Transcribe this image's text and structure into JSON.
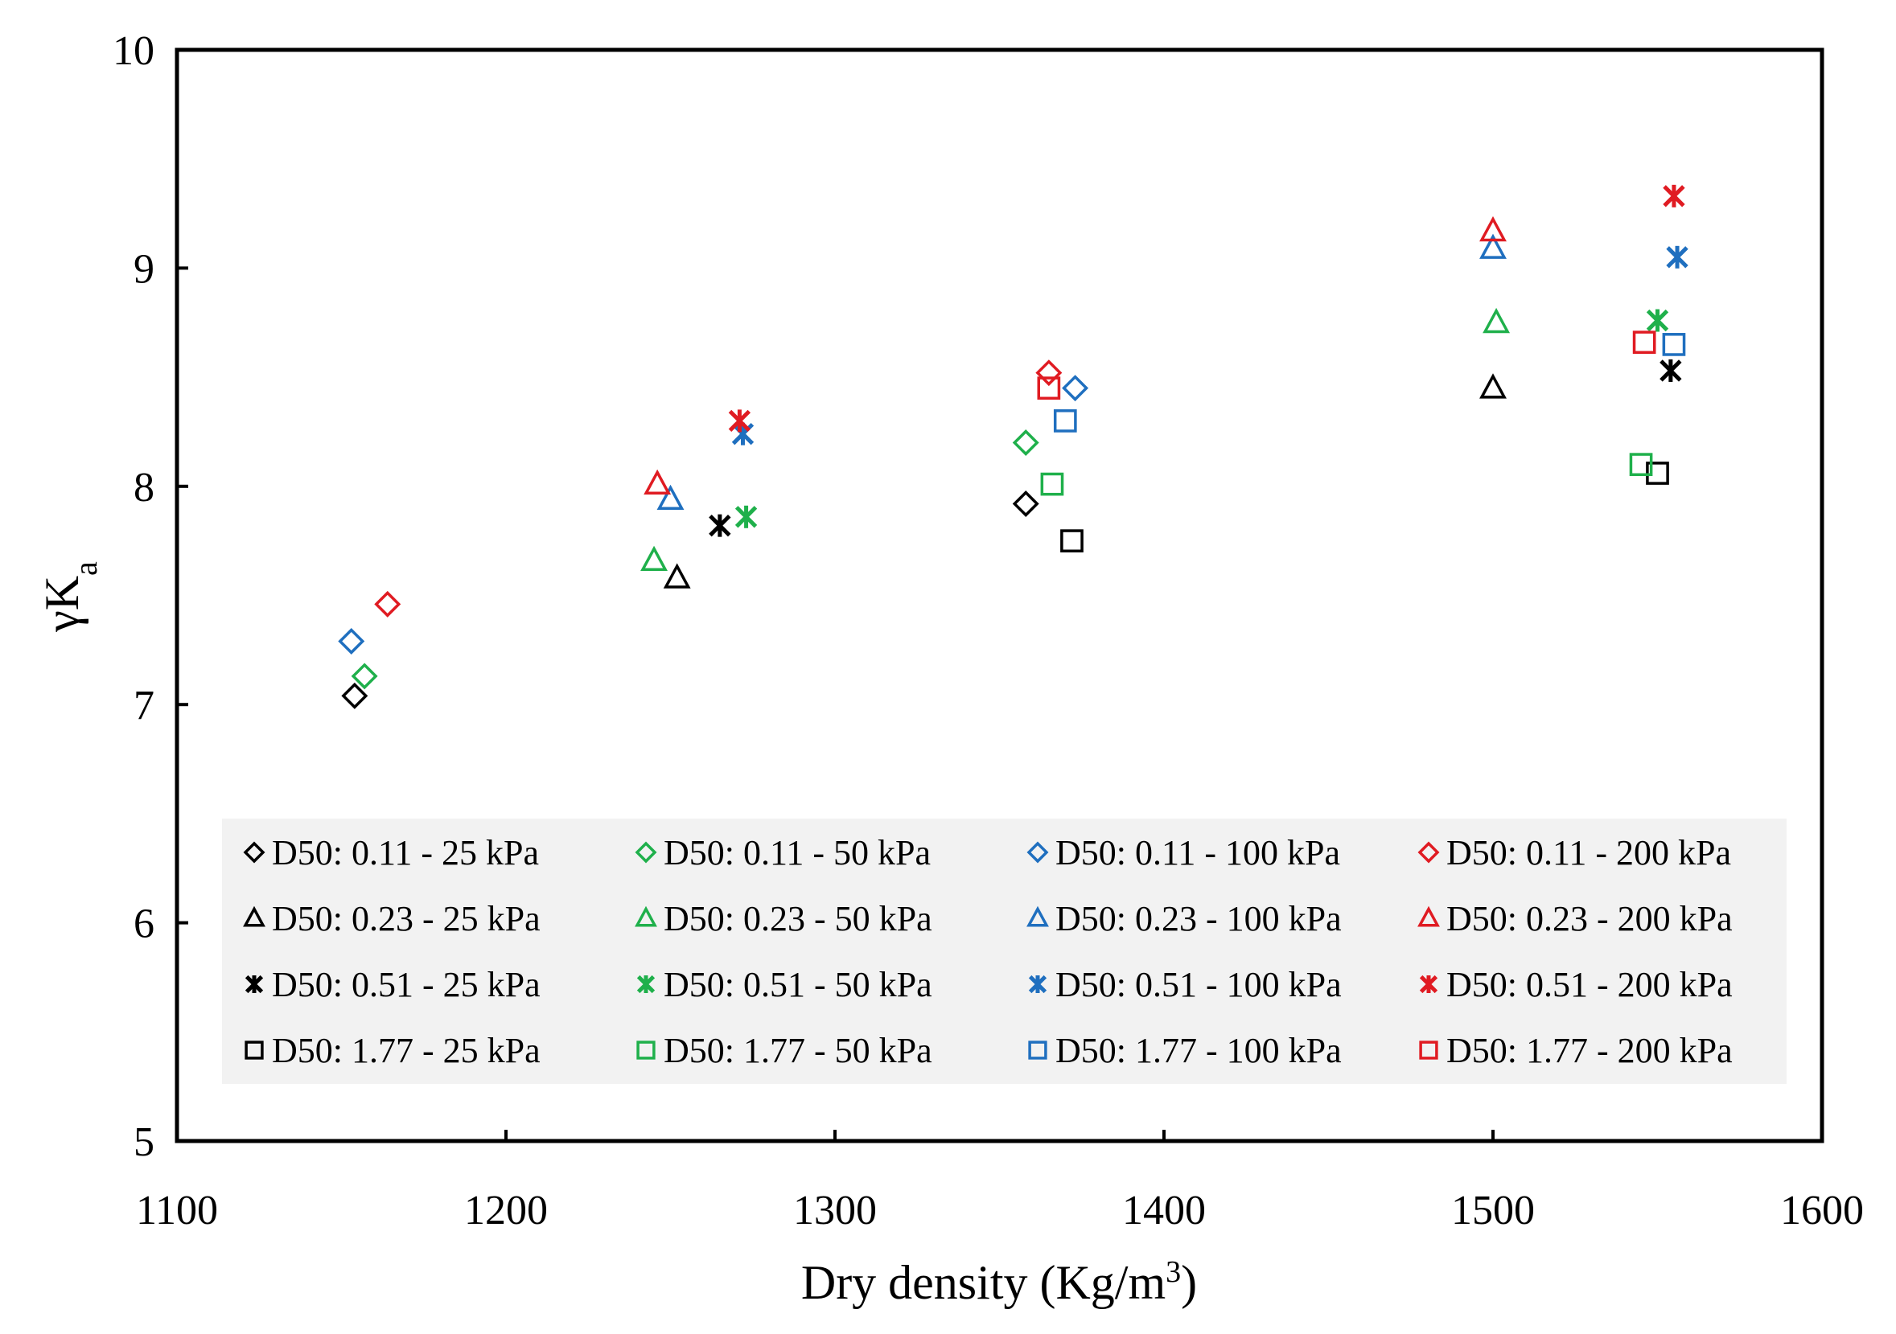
{
  "chart_data": {
    "type": "scatter",
    "title": "",
    "xlabel": "Dry density (Kg/m",
    "xlabel_sup": "3",
    "xlabel_end": ")",
    "ylabel_main": "γK",
    "ylabel_sub": "a",
    "xlim": [
      1100,
      1600
    ],
    "ylim": [
      5,
      10
    ],
    "xticks": [
      1100,
      1200,
      1300,
      1400,
      1500,
      1600
    ],
    "yticks": [
      5,
      6,
      7,
      8,
      9,
      10
    ],
    "grid": false,
    "legend_position": "bottom",
    "colors": {
      "25 kPa": "#000000",
      "50 kPa": "#1fb04b",
      "100 kPa": "#1f6fbf",
      "200 kPa": "#e01b22"
    },
    "series": [
      {
        "name": "D50: 0.11 - 25 kPa",
        "marker": "diamond",
        "color": "#000000",
        "points": [
          {
            "x": 1154,
            "y": 7.04
          },
          {
            "x": 1358,
            "y": 7.92
          }
        ]
      },
      {
        "name": "D50: 0.11 - 50 kPa",
        "marker": "diamond",
        "color": "#1fb04b",
        "points": [
          {
            "x": 1157,
            "y": 7.13
          },
          {
            "x": 1358,
            "y": 8.2
          }
        ]
      },
      {
        "name": "D50: 0.11 - 100 kPa",
        "marker": "diamond",
        "color": "#1f6fbf",
        "points": [
          {
            "x": 1153,
            "y": 7.29
          },
          {
            "x": 1373,
            "y": 8.45
          }
        ]
      },
      {
        "name": "D50: 0.11 - 200 kPa",
        "marker": "diamond",
        "color": "#e01b22",
        "points": [
          {
            "x": 1164,
            "y": 7.46
          },
          {
            "x": 1365,
            "y": 8.52
          }
        ]
      },
      {
        "name": "D50: 0.23 - 25 kPa",
        "marker": "triangle",
        "color": "#000000",
        "points": [
          {
            "x": 1252,
            "y": 7.58
          },
          {
            "x": 1500,
            "y": 8.45
          }
        ]
      },
      {
        "name": "D50: 0.23 - 50 kPa",
        "marker": "triangle",
        "color": "#1fb04b",
        "points": [
          {
            "x": 1245,
            "y": 7.66
          },
          {
            "x": 1501,
            "y": 8.75
          }
        ]
      },
      {
        "name": "D50: 0.23 - 100 kPa",
        "marker": "triangle",
        "color": "#1f6fbf",
        "points": [
          {
            "x": 1250,
            "y": 7.94
          },
          {
            "x": 1500,
            "y": 9.09
          }
        ]
      },
      {
        "name": "D50: 0.23 - 200 kPa",
        "marker": "triangle",
        "color": "#e01b22",
        "points": [
          {
            "x": 1246,
            "y": 8.01
          },
          {
            "x": 1500,
            "y": 9.17
          }
        ]
      },
      {
        "name": "D50: 0.51 - 25 kPa",
        "marker": "star",
        "color": "#000000",
        "points": [
          {
            "x": 1265,
            "y": 7.82
          },
          {
            "x": 1554,
            "y": 8.53
          }
        ]
      },
      {
        "name": "D50: 0.51 - 50 kPa",
        "marker": "star",
        "color": "#1fb04b",
        "points": [
          {
            "x": 1273,
            "y": 7.86
          },
          {
            "x": 1550,
            "y": 8.76
          }
        ]
      },
      {
        "name": "D50: 0.51 - 100 kPa",
        "marker": "star",
        "color": "#1f6fbf",
        "points": [
          {
            "x": 1272,
            "y": 8.24
          },
          {
            "x": 1556,
            "y": 9.05
          }
        ]
      },
      {
        "name": "D50: 0.51 - 200 kPa",
        "marker": "star",
        "color": "#e01b22",
        "points": [
          {
            "x": 1271,
            "y": 8.3
          },
          {
            "x": 1555,
            "y": 9.33
          }
        ]
      },
      {
        "name": "D50: 1.77 - 25 kPa",
        "marker": "square",
        "color": "#000000",
        "points": [
          {
            "x": 1372,
            "y": 7.75
          },
          {
            "x": 1550,
            "y": 8.06
          }
        ]
      },
      {
        "name": "D50: 1.77 - 50 kPa",
        "marker": "square",
        "color": "#1fb04b",
        "points": [
          {
            "x": 1366,
            "y": 8.01
          },
          {
            "x": 1545,
            "y": 8.1
          }
        ]
      },
      {
        "name": "D50: 1.77 - 100 kPa",
        "marker": "square",
        "color": "#1f6fbf",
        "points": [
          {
            "x": 1370,
            "y": 8.3
          },
          {
            "x": 1555,
            "y": 8.65
          }
        ]
      },
      {
        "name": "D50: 1.77 - 200 kPa",
        "marker": "square",
        "color": "#e01b22",
        "points": [
          {
            "x": 1365,
            "y": 8.45
          },
          {
            "x": 1546,
            "y": 8.66
          }
        ]
      }
    ]
  }
}
